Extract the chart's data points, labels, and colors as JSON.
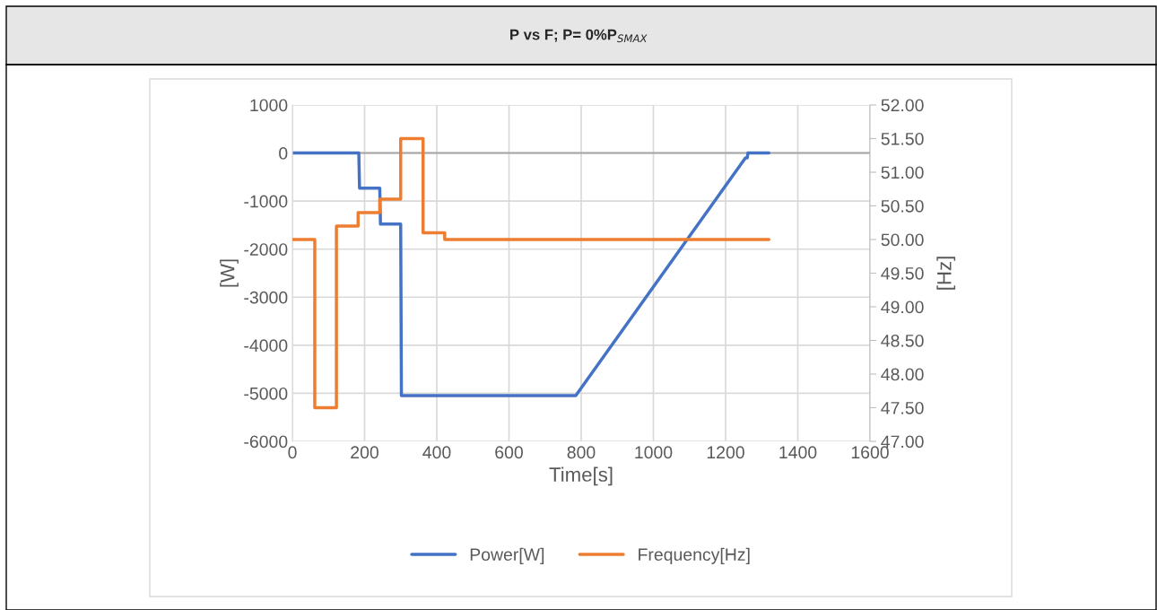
{
  "chart_data": {
    "type": "line",
    "title": "P vs F; P= 0%P$_{SMAX}$",
    "xlabel": "Time[s]",
    "ylabel": "[W]",
    "y2label": "[Hz]",
    "series": [
      {
        "name": "Power[W]",
        "color": "#4472c4",
        "x": [
          0,
          184,
          186,
          242,
          244,
          300,
          302,
          785,
          1255,
          1260,
          1262,
          1320
        ],
        "values": [
          0,
          0,
          -730,
          -730,
          -1480,
          -1480,
          -5050,
          -5050,
          -100,
          -100,
          0,
          0
        ]
      },
      {
        "name": "Frequency[Hz]",
        "color": "#ed7d31",
        "axis": "y2",
        "x": [
          0,
          62,
          62,
          122,
          122,
          182,
          182,
          242,
          242,
          300,
          300,
          362,
          362,
          422,
          422,
          1320
        ],
        "values": [
          50.0,
          50.0,
          47.5,
          47.5,
          50.2,
          50.2,
          50.4,
          50.4,
          50.6,
          50.6,
          51.5,
          51.5,
          50.1,
          50.1,
          50.0,
          50.0
        ]
      }
    ],
    "xlim": [
      0,
      1600
    ],
    "xticks": [
      0,
      200,
      400,
      600,
      800,
      1000,
      1200,
      1400,
      1600
    ],
    "ylim": [
      -6000,
      1000
    ],
    "yticks": [
      {
        "value": -6000,
        "label": "-6000"
      },
      {
        "value": -5000,
        "label": "-5000"
      },
      {
        "value": -4000,
        "label": "-4000"
      },
      {
        "value": -3000,
        "label": "-3000"
      },
      {
        "value": -2000,
        "label": "-2000"
      },
      {
        "value": -1000,
        "label": "-1000"
      },
      0,
      1000
    ],
    "y2lim": [
      47,
      52
    ],
    "y2ticks": [
      {
        "value": 47,
        "label": "47.00"
      },
      {
        "value": 47.5,
        "label": "47.50"
      },
      {
        "value": 48,
        "label": "48.00"
      },
      {
        "value": 48.5,
        "label": "48.50"
      },
      {
        "value": 49,
        "label": "49.00"
      },
      {
        "value": 49.5,
        "label": "49.50"
      },
      {
        "value": 50,
        "label": "50.00"
      },
      {
        "value": 50.5,
        "label": "50.50"
      },
      {
        "value": 51,
        "label": "51.00"
      },
      {
        "value": 51.5,
        "label": "51.50"
      },
      {
        "value": 52,
        "label": "52.00"
      }
    ],
    "grid": true,
    "legend": "bottom",
    "line_style": "solid",
    "marker": "none"
  }
}
